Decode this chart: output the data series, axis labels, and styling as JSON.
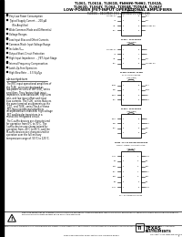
{
  "title_line1": "TL061, TL061A, TL061B, TL061Y, TL062, TL062A,",
  "title_line2": "TL062D, TL064Y, TL064, TL064A, TL064B, TL064Y",
  "title_line3": "LOW-POWER JFET-INPUT OPERATIONAL AMPLIFIERS",
  "subtitle": "SLOS081 – DECEMBER 1978 – REVISED OCTOBER 1999",
  "features": [
    "Very Low Power Consumption",
    "Typical Supply Current ... 200 μA",
    "(Per Amplifier)",
    "Wide Common-Mode and Differential",
    "Voltage Ranges",
    "Low Input Bias and Offset Currents",
    "Common-Mode Input Voltage Range",
    "Includes V₂₀₂",
    "Output Short-Circuit Protection",
    "High Input Impedance ... JFET-Input Stage",
    "Internal Frequency Compensation",
    "Latch-Up-Free Operation",
    "High Slew Rate ... 3.5 V/μTyp"
  ],
  "description_title": "description",
  "desc_para1": "The JFET-input operational amplifiers of the TL06_ series are designed as low-power versions of the TL08_ series amplifiers. They feature high input impedance, wide bandwidth, high slew rate, and low input offset and input bias currents. The TL06_ series features the same terminal assignments as the TL07_ and TL08_ series. Each of these JFET-input operational amplifiers incorporates well-matched, high-voltage JFET and bipolar transistors in a monolithic integrated circuit.",
  "desc_para2": "The C-suffix devices are characterized for operation from 0°C to 70°C. The I-suffix devices are characterized for operation from -40°C to 85°C, and the M-suffix devices are characterized for operation over the full military temperature range of -55°C to 125°C.",
  "bg_color": "#ffffff",
  "text_color": "#000000",
  "left_bar_color": "#000000",
  "footer_warning": "Please be aware that an important notice concerning availability, standard warranty, and use in critical applications of Texas Instruments semiconductor products and disclaimers thereto appears at the end of this data book.",
  "footer_legal": "PRODUCTION DATA information is current as of publication date. Products conform to specifications per the terms of Texas Instruments standard warranty. Production processing does not necessarily include testing of all parameters.",
  "copyright": "Copyright © 1998, Texas Instruments Incorporated",
  "footer_address": "2900 Semiconductor Drive, Santa Clara, California 95051",
  "page_number": "1",
  "diag1_labels": [
    "TL061, TL061A, TL061B",
    "D, JG, OR W PACKAGES",
    "(TOP VIEW)"
  ],
  "diag1_left": [
    "OFFSET N1",
    "IN-",
    "IN+",
    "V₂††"
  ],
  "diag1_right": [
    "V₂††+",
    "OUT",
    "OFFSET N2",
    ""
  ],
  "diag1_lnums": [
    "1",
    "2",
    "3",
    "4"
  ],
  "diag1_rnums": [
    "8",
    "7",
    "6",
    "5"
  ],
  "diag2_labels": [
    "TL061 – D PACKAGE",
    "(TOP VIEW)",
    ""
  ],
  "diag2_left": [
    "NC",
    "OFFSET N1",
    "IN-",
    "IN+",
    "V††"
  ],
  "diag2_right": [
    "NC",
    "NC",
    "NC",
    "OUT",
    "OFFSET N2"
  ],
  "diag3_labels": [
    "TL062, TL062A, TL068",
    "D, JG, OR N PACKAGE",
    "(TOP VIEW)"
  ],
  "diag3_left": [
    "1OUT",
    "1IN-",
    "1IN+",
    "V††-"
  ],
  "diag3_right": [
    "V††+",
    "2OUT",
    "2IN-",
    "2IN+"
  ],
  "diag4_labels": [
    "TL064 – D PACKAGE",
    "(TOP VIEW)",
    ""
  ],
  "diag4_left": [
    "1IN+",
    "1IN-",
    "V††-"
  ],
  "diag4_right": [
    "NC",
    "2IN+",
    "2IN-",
    "NC"
  ],
  "diag5_labels": [
    "TL064 – D, J, N, PW OR N PACKAGE",
    "TL064A, TL064B – D OR N PACKAGE",
    "(TOP VIEW)"
  ],
  "diag5_left": [
    "1OUT",
    "1IN-",
    "1IN+",
    "V††-",
    "2IN+",
    "2IN-",
    "2OUT"
  ],
  "diag5_right": [
    "4OUT",
    "4IN-",
    "4IN+",
    "V††+",
    "3IN+",
    "3IN-",
    "3OUT"
  ],
  "nc_note": "NC = No internal connection"
}
